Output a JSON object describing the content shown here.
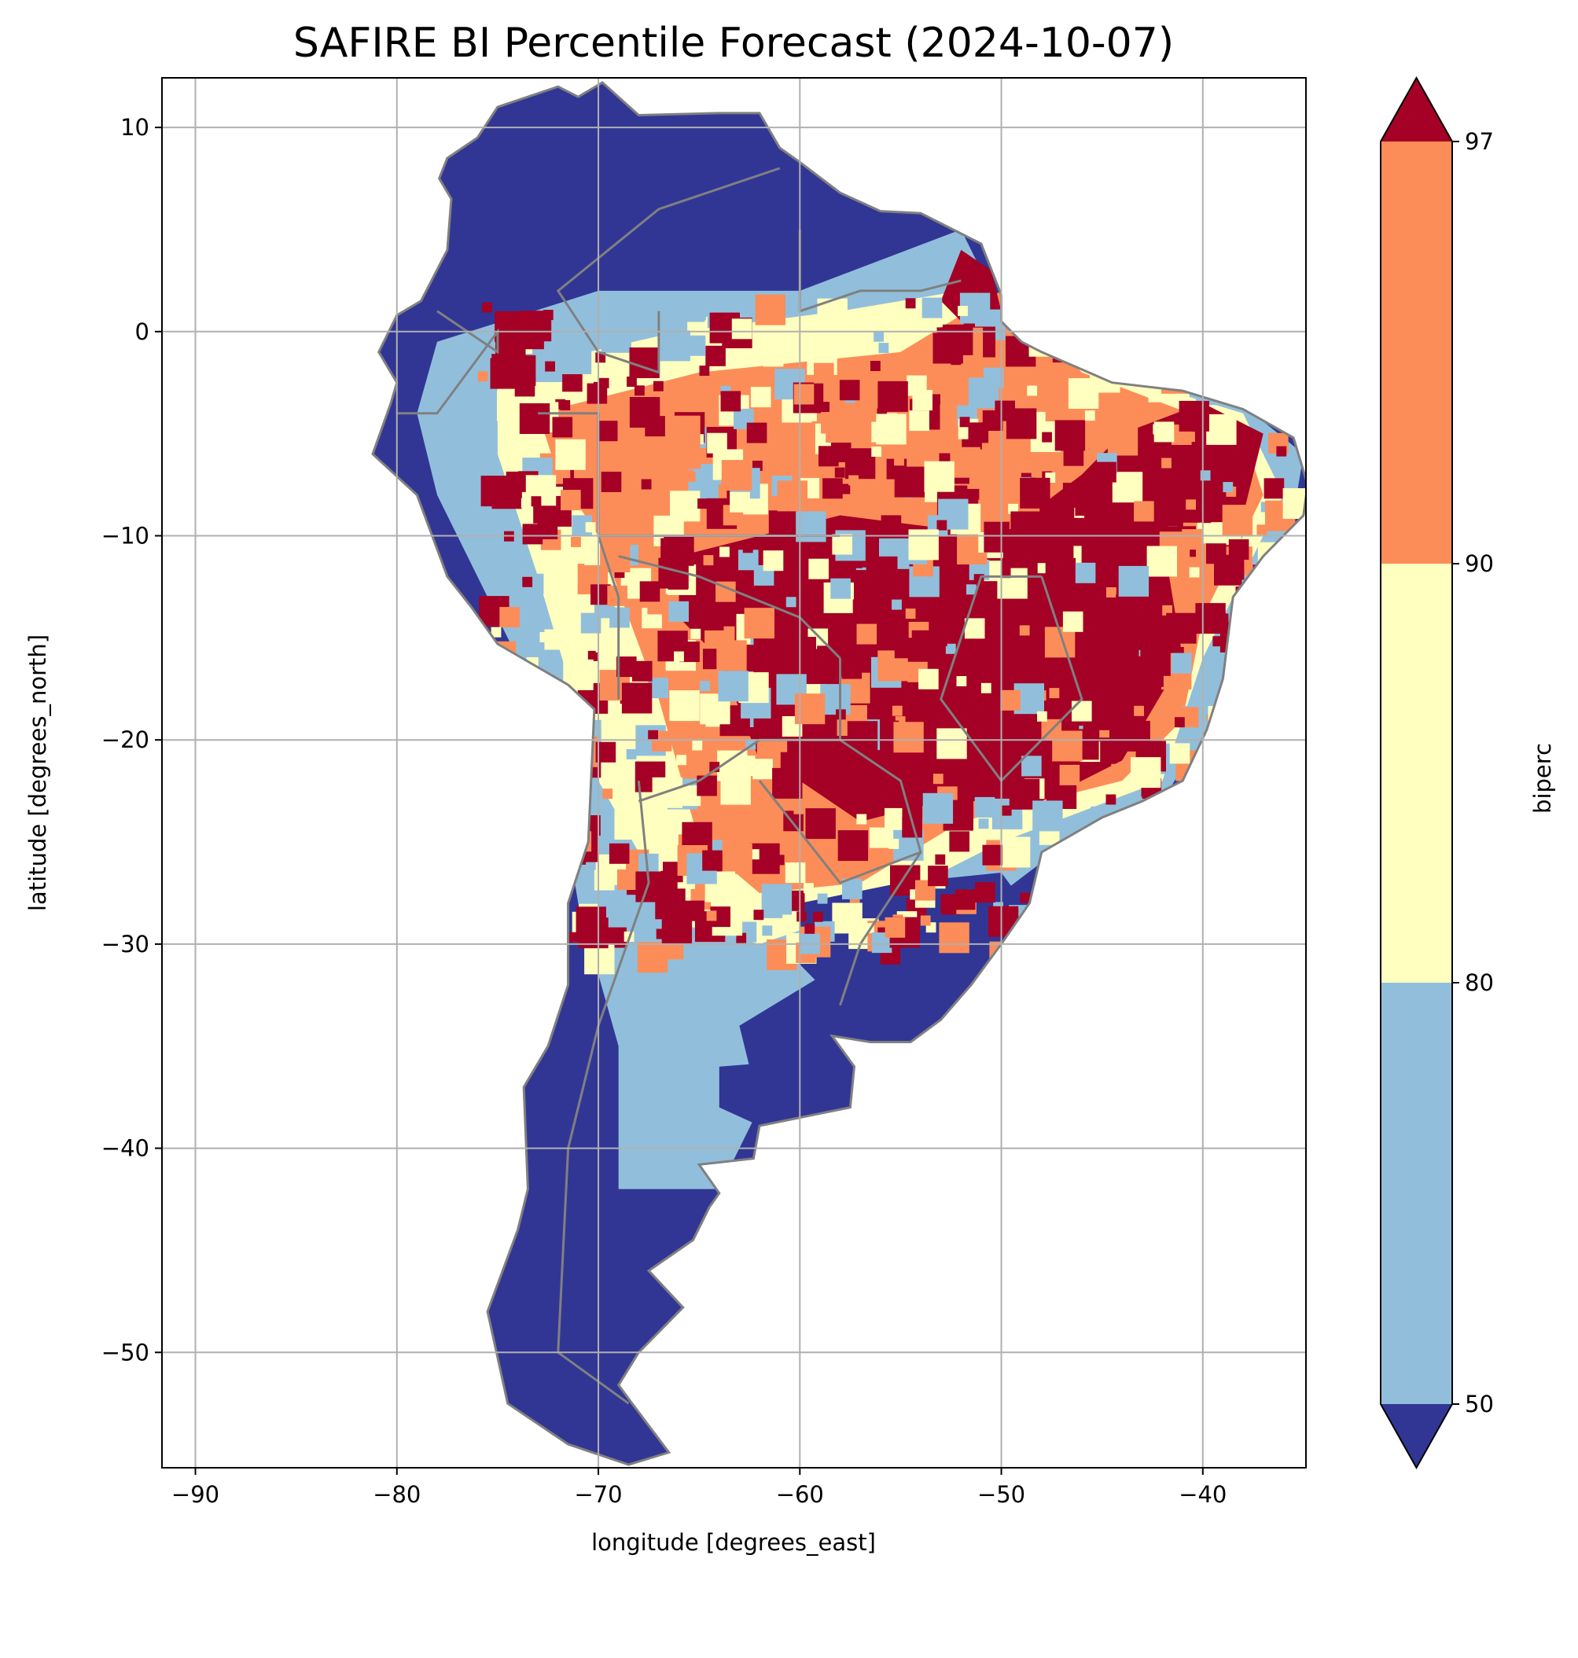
{
  "chart_data": {
    "type": "heatmap",
    "title": "SAFIRE BI Percentile Forecast (2024-10-07)",
    "xlabel": "longitude [degrees_east]",
    "ylabel": "latitude [degrees_north]",
    "xlim": [
      -91.66,
      -34.88
    ],
    "ylim": [
      -55.65,
      12.43
    ],
    "xticks": [
      -90,
      -80,
      -70,
      -60,
      -50,
      -40
    ],
    "xtick_labels": [
      "−90",
      "−80",
      "−70",
      "−60",
      "−50",
      "−40"
    ],
    "yticks": [
      10,
      0,
      -10,
      -20,
      -30,
      -40,
      -50
    ],
    "ytick_labels": [
      "10",
      "0",
      "−10",
      "−20",
      "−30",
      "−40",
      "−50"
    ],
    "grid": true,
    "colorbar": {
      "label": "biperc",
      "levels": [
        50,
        80,
        90,
        97
      ],
      "tick_labels": [
        "50",
        "80",
        "90",
        "97"
      ],
      "extend": "both",
      "bins": [
        {
          "range": "<50",
          "color": "#313695"
        },
        {
          "range": "50-80",
          "color": "#91bfdb"
        },
        {
          "range": "80-90",
          "color": "#ffffbf"
        },
        {
          "range": "90-97",
          "color": "#fc8d59"
        },
        {
          "range": ">97",
          "color": "#a50026"
        }
      ],
      "placement": "right"
    },
    "border_color": "#808080",
    "grid_color": "#b0b0b0"
  }
}
